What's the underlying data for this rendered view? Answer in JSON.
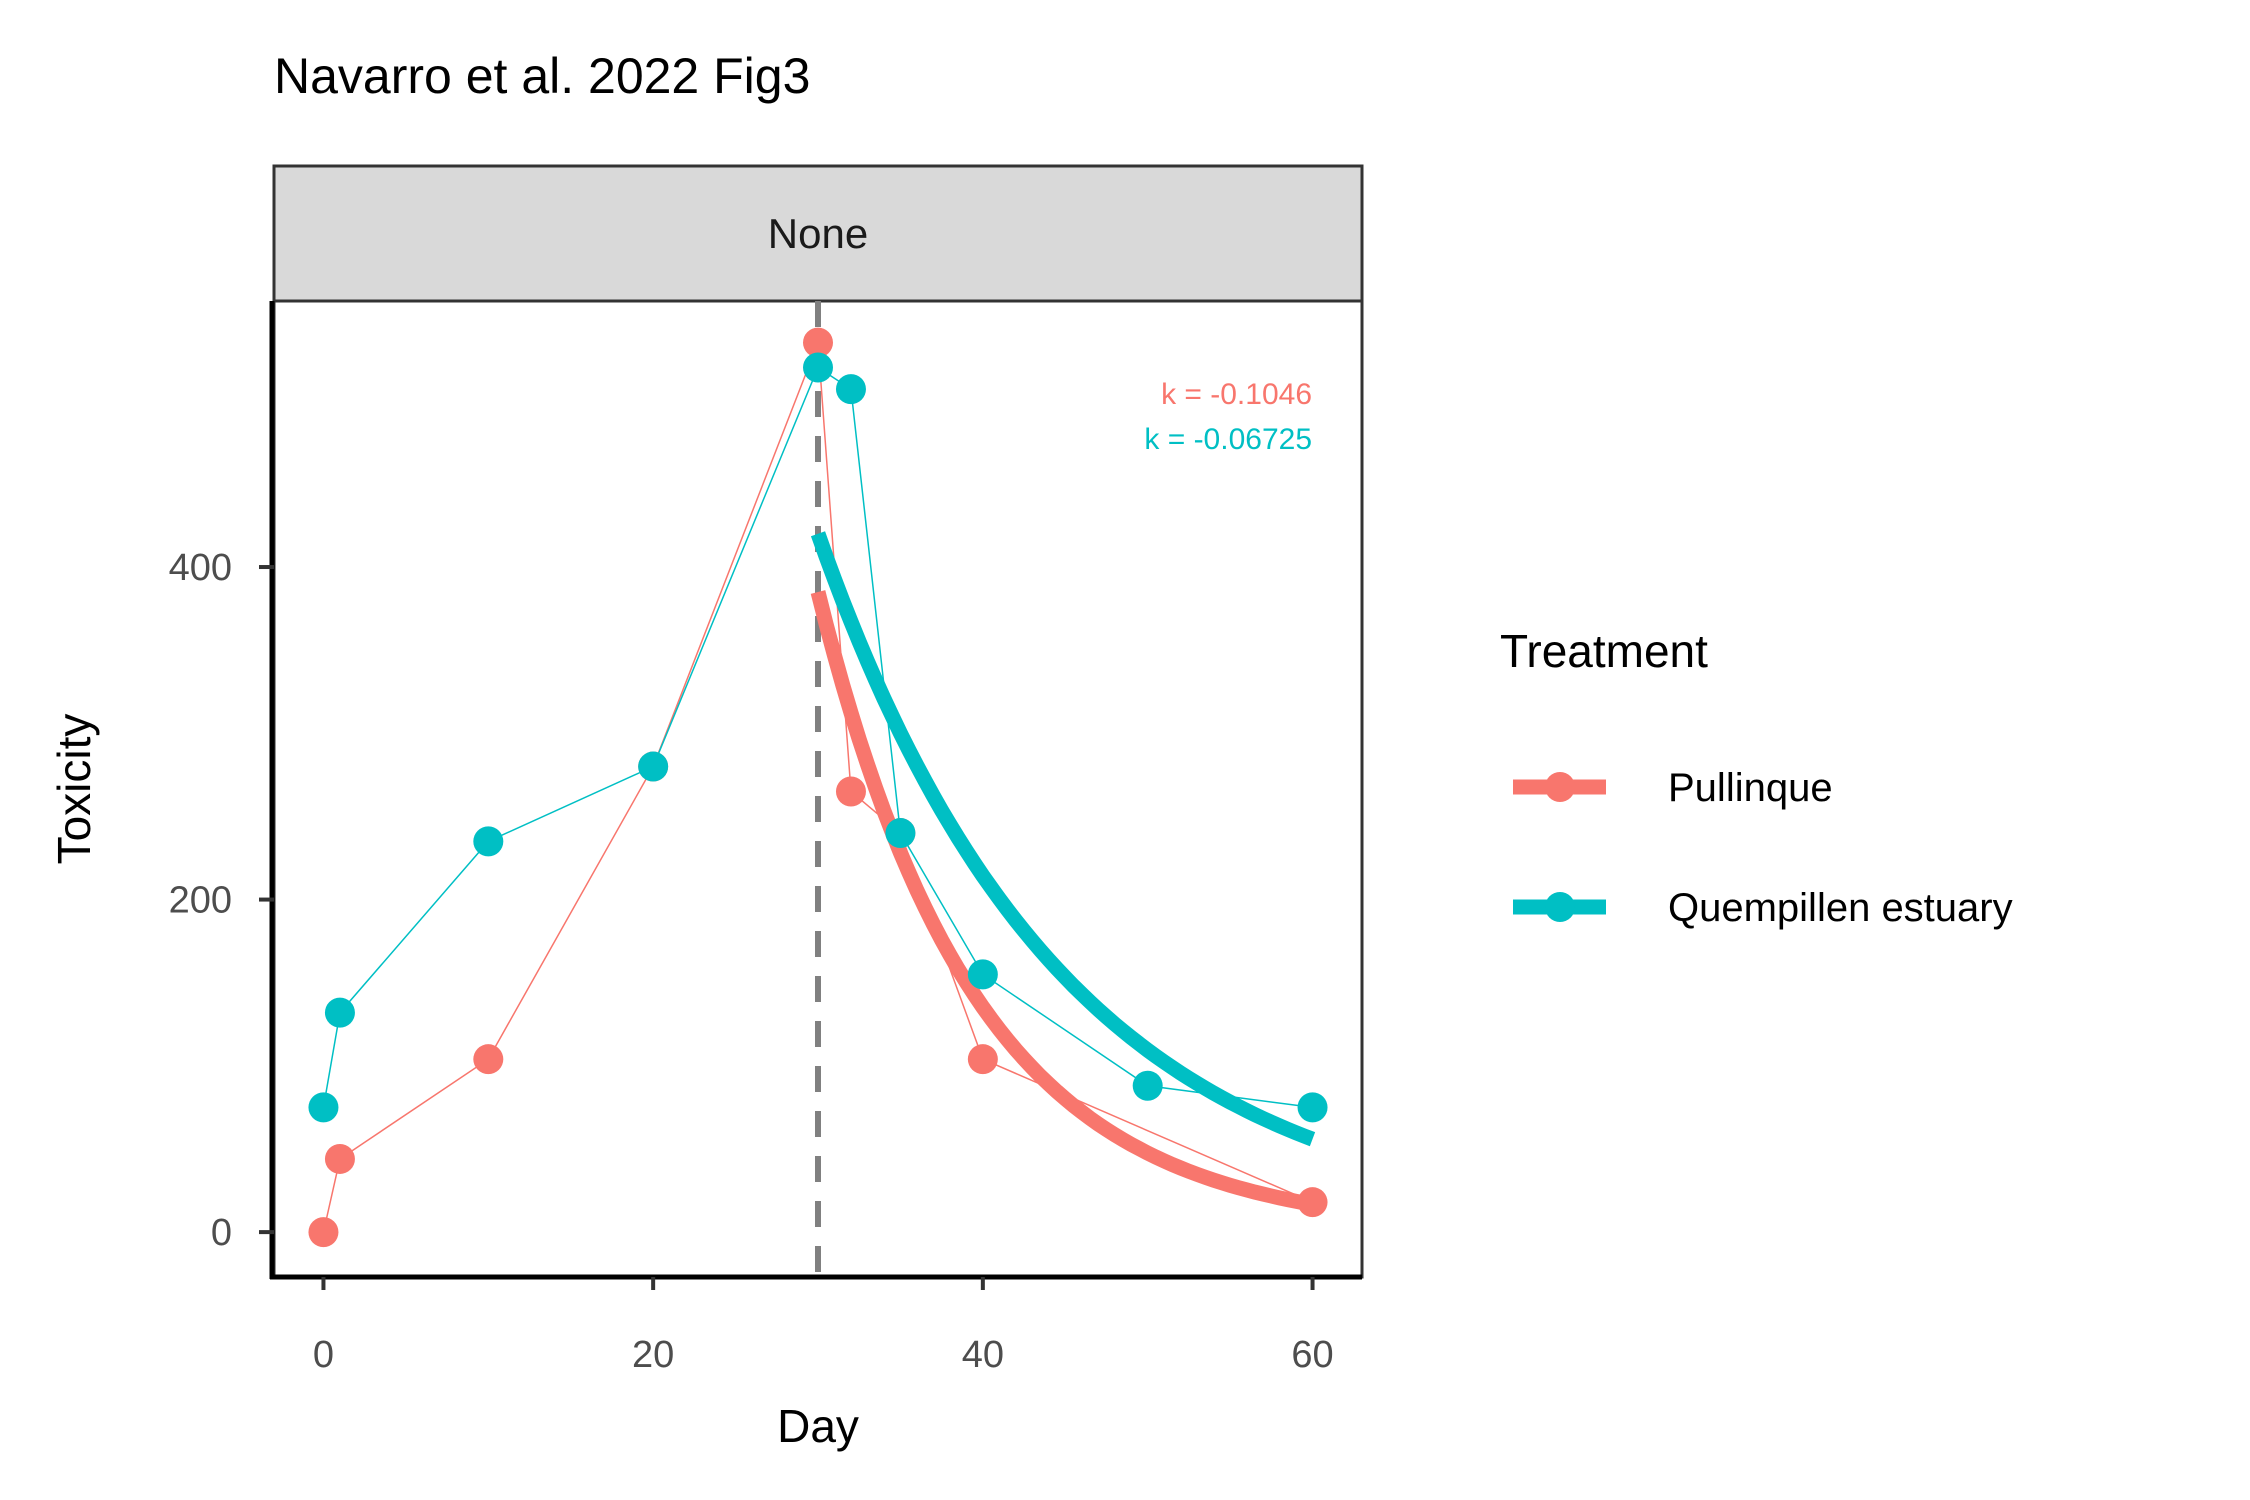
{
  "chart_data": {
    "type": "line",
    "title": "Navarro et al. 2022 Fig3",
    "facet_label": "None",
    "xlabel": "Day",
    "ylabel": "Toxicity",
    "xlim": [
      -3,
      63
    ],
    "ylim": [
      -27,
      560
    ],
    "x_ticks": [
      0,
      20,
      40,
      60
    ],
    "y_ticks": [
      0,
      200,
      400
    ],
    "vline_x": 30,
    "grid": false,
    "legend_position": "right",
    "legend_title": "Treatment",
    "series": [
      {
        "name": "Pullinque",
        "color": "#F8766D",
        "x": [
          0,
          1,
          10,
          20,
          30,
          32,
          35,
          40,
          60
        ],
        "y": [
          0,
          44,
          104,
          280,
          535,
          265,
          240,
          104,
          18
        ],
        "fit": {
          "x0": 30,
          "x1": 60,
          "y0": 385,
          "k": -0.1046
        },
        "annotation": "k = -0.1046"
      },
      {
        "name": "Quempillen estuary",
        "color": "#00BFC4",
        "x": [
          0,
          1,
          10,
          20,
          30,
          32,
          35,
          40,
          50,
          60
        ],
        "y": [
          75,
          132,
          235,
          280,
          520,
          507,
          240,
          155,
          88,
          75
        ],
        "fit": {
          "x0": 30,
          "x1": 60,
          "y0": 420,
          "k": -0.06725
        },
        "annotation": "k = -0.06725"
      }
    ]
  }
}
